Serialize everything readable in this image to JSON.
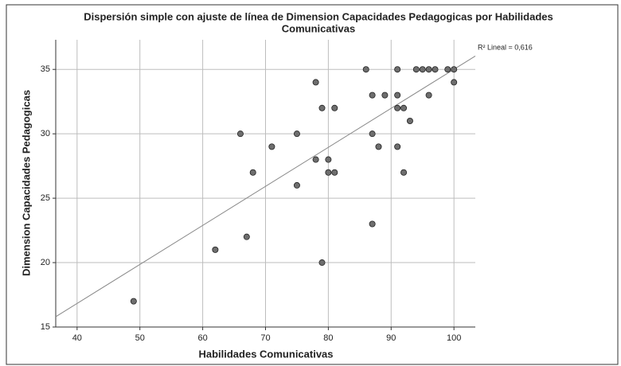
{
  "chart_data": {
    "type": "scatter",
    "title": [
      "Dispersión simple con ajuste de línea de Dimension Capacidades Pedagogicas por Habilidades",
      "Comunicativas"
    ],
    "x_label": "Habilidades Comunicativas",
    "y_label": "Dimension Capacidades Pedagogicas",
    "annotation": "R² Lineal = 0,616",
    "x": [
      49,
      62,
      66,
      67,
      68,
      71,
      75,
      75,
      78,
      78,
      79,
      79,
      80,
      80,
      81,
      81,
      86,
      87,
      87,
      87,
      88,
      89,
      91,
      91,
      91,
      91,
      92,
      92,
      93,
      94,
      95,
      96,
      96,
      97,
      99,
      100,
      100
    ],
    "values": [
      17,
      21,
      30,
      22,
      27,
      29,
      30,
      26,
      34,
      28,
      32,
      20,
      28,
      27,
      32,
      27,
      35,
      33,
      30,
      23,
      29,
      33,
      35,
      33,
      32,
      29,
      32,
      27,
      31,
      35,
      35,
      35,
      33,
      35,
      35,
      35,
      34
    ],
    "color": "#6e6e6e",
    "fit": {
      "slope": 0.303,
      "intercept": 4.71
    },
    "xlim": [
      36.6,
      103.4
    ],
    "xticks": [
      40,
      50,
      60,
      70,
      80,
      90,
      100
    ],
    "ylim": [
      15,
      37.3
    ],
    "yticks": [
      15,
      20,
      25,
      30,
      35
    ],
    "grid": true
  }
}
